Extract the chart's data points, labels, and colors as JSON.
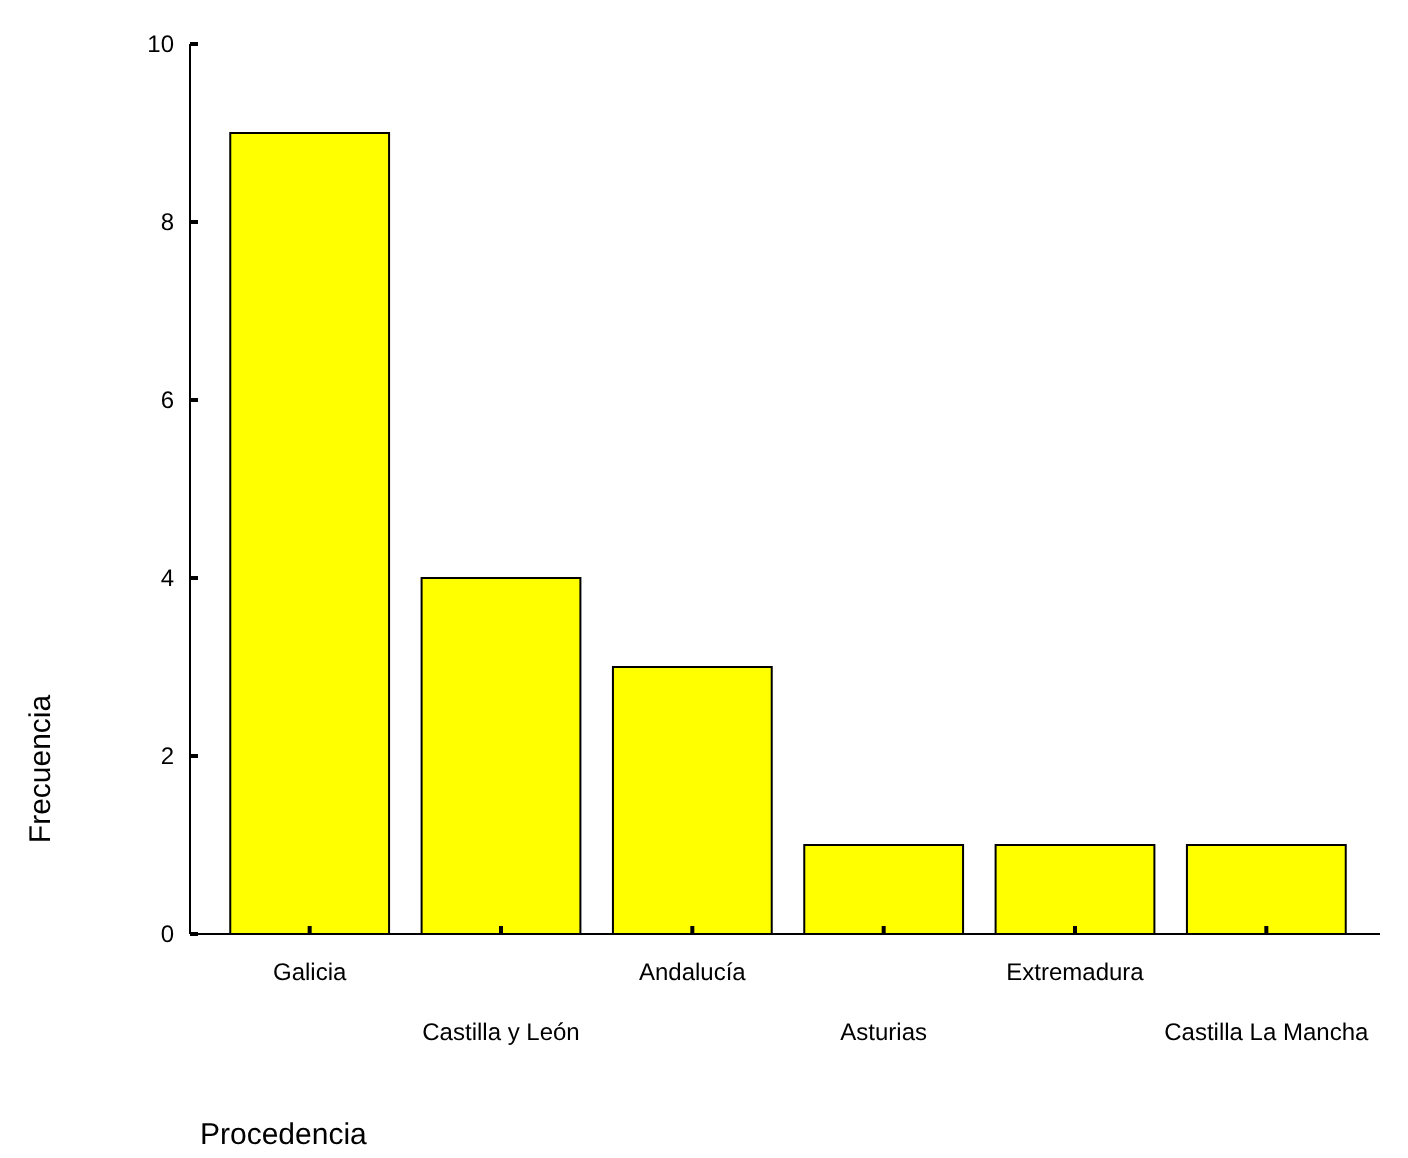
{
  "chart_data": {
    "type": "bar",
    "xlabel": "Procedencia",
    "ylabel": "Frecuencia",
    "categories": [
      "Galicia",
      "Castilla y León",
      "Andalucía",
      "Asturias",
      "Extremadura",
      "Castilla La Mancha"
    ],
    "values": [
      9,
      4,
      3,
      1,
      1,
      1
    ],
    "color": "#ffff00",
    "ylim": [
      0,
      10
    ],
    "yticks": [
      0,
      2,
      4,
      6,
      8,
      10
    ],
    "grid": false
  }
}
